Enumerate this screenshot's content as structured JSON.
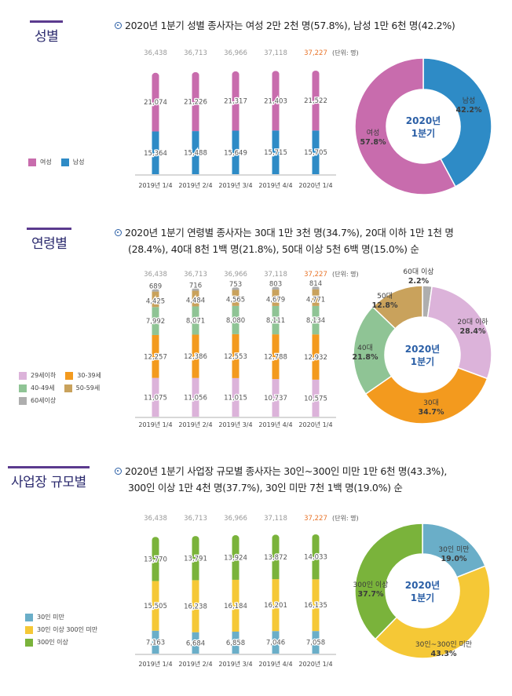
{
  "sections": [
    {
      "title": "성별",
      "headline": [
        "2020년 1분기 성별 종사자는 여성 2만 2천 명(57.8%), 남성 1만 6천 명(42.2%)"
      ],
      "unit": "(단위: 명)",
      "donut_center": [
        "2020년",
        "1분기"
      ]
    },
    {
      "title": "연령별",
      "headline": [
        "2020년 1분기 연령별 종사자는 30대 1만 3천 명(34.7%), 20대 이하 1만 1천 명",
        "(28.4%), 40대 8천 1백 명(21.8%), 50대 이상 5천 6백 명(15.0%) 순"
      ],
      "unit": "(단위: 명)",
      "donut_center": [
        "2020년",
        "1분기"
      ]
    },
    {
      "title": "사업장 규모별",
      "headline": [
        "2020년 1분기 사업장 규모별 종사자는 30인~300인 미만 1만 6천 명(43.3%),",
        "300인 이상 1만 4천 명(37.7%), 30인 미만 7천 1백 명(19.0%) 순"
      ],
      "unit": "(단위: 명)",
      "donut_center": [
        "2020년",
        "1분기"
      ]
    }
  ],
  "chart_data": [
    {
      "type": "bar",
      "stacked": true,
      "categories": [
        "2019년 1/4",
        "2019년 2/4",
        "2019년 3/4",
        "2019년 4/4",
        "2020년 1/4"
      ],
      "totals": [
        "36,438",
        "36,713",
        "36,966",
        "37,118",
        "37,227"
      ],
      "highlight_color": "#e8742a",
      "series": [
        {
          "name": "남성",
          "color": "#2e8bc6",
          "values": [
            15364,
            15488,
            15649,
            15715,
            15705
          ],
          "labels": [
            "15,364",
            "15,488",
            "15,649",
            "15,715",
            "15,705"
          ]
        },
        {
          "name": "여성",
          "color": "#c86cad",
          "values": [
            21074,
            21226,
            21317,
            21403,
            21522
          ],
          "labels": [
            "21,074",
            "21,226",
            "21,317",
            "21,403",
            "21,522"
          ]
        }
      ],
      "legend": [
        "여성",
        "남성"
      ]
    },
    {
      "type": "pie",
      "donut": true,
      "slices": [
        {
          "label": "남성",
          "value": 42.2,
          "pct": "42.2%",
          "color": "#2e8bc6"
        },
        {
          "label": "여성",
          "value": 57.8,
          "pct": "57.8%",
          "color": "#c86cad"
        }
      ]
    },
    {
      "type": "bar",
      "stacked": true,
      "categories": [
        "2019년 1/4",
        "2019년 2/4",
        "2019년 3/4",
        "2019년 4/4",
        "2020년 1/4"
      ],
      "totals": [
        "36,438",
        "36,713",
        "36,966",
        "37,118",
        "37,227"
      ],
      "highlight_color": "#e8742a",
      "series": [
        {
          "name": "29세이하",
          "color": "#dcb3da",
          "values": [
            11075,
            11056,
            11015,
            10737,
            10575
          ],
          "labels": [
            "11,075",
            "11,056",
            "11,015",
            "10,737",
            "10,575"
          ]
        },
        {
          "name": "30-39세",
          "color": "#f39a1e",
          "values": [
            12257,
            12386,
            12553,
            12788,
            12932
          ],
          "labels": [
            "12,257",
            "12,386",
            "12,553",
            "12,788",
            "12,932"
          ]
        },
        {
          "name": "40-49세",
          "color": "#8fc495",
          "values": [
            7992,
            8071,
            8080,
            8111,
            8134
          ],
          "labels": [
            "7,992",
            "8,071",
            "8,080",
            "8,111",
            "8,134"
          ]
        },
        {
          "name": "50-59세",
          "color": "#c9a25c",
          "values": [
            4425,
            4484,
            4565,
            4679,
            4771
          ],
          "labels": [
            "4,425",
            "4,484",
            "4,565",
            "4,679",
            "4,771"
          ]
        },
        {
          "name": "60세이상",
          "color": "#aeaeae",
          "values": [
            689,
            716,
            753,
            803,
            814
          ],
          "labels": [
            "689",
            "716",
            "753",
            "803",
            "814"
          ]
        }
      ],
      "legend": [
        "29세이하",
        "30-39세",
        "40-49세",
        "50-59세",
        "60세이상"
      ]
    },
    {
      "type": "pie",
      "donut": true,
      "slices": [
        {
          "label": "60대 이상",
          "value": 2.2,
          "pct": "2.2%",
          "color": "#aeaeae"
        },
        {
          "label": "20대 이하",
          "value": 28.4,
          "pct": "28.4%",
          "color": "#dcb3da"
        },
        {
          "label": "30대",
          "value": 34.7,
          "pct": "34.7%",
          "color": "#f39a1e"
        },
        {
          "label": "40대",
          "value": 21.8,
          "pct": "21.8%",
          "color": "#8fc495"
        },
        {
          "label": "50대",
          "value": 12.8,
          "pct": "12.8%",
          "color": "#c9a25c"
        }
      ]
    },
    {
      "type": "bar",
      "stacked": true,
      "categories": [
        "2019년 1/4",
        "2019년 2/4",
        "2019년 3/4",
        "2019년 4/4",
        "2020년 1/4"
      ],
      "totals": [
        "36,438",
        "36,713",
        "36,966",
        "37,118",
        "37,227"
      ],
      "highlight_color": "#e8742a",
      "series": [
        {
          "name": "30인 미만",
          "color": "#6aaec8",
          "values": [
            7163,
            6684,
            6858,
            7046,
            7058
          ],
          "labels": [
            "7,163",
            "6,684",
            "6,858",
            "7,046",
            "7,058"
          ]
        },
        {
          "name": "30인 이상 300인 미만",
          "color": "#f5c836",
          "values": [
            15505,
            16238,
            16184,
            16201,
            16135
          ],
          "labels": [
            "15,505",
            "16,238",
            "16,184",
            "16,201",
            "16,135"
          ]
        },
        {
          "name": "300인 이상",
          "color": "#7ab33b",
          "values": [
            13770,
            13791,
            13924,
            13872,
            14033
          ],
          "labels": [
            "13,770",
            "13,791",
            "13,924",
            "13,872",
            "14,033"
          ]
        }
      ],
      "legend": [
        "30인 미만",
        "30인 이상 300인 미만",
        "300인 이상"
      ]
    },
    {
      "type": "pie",
      "donut": true,
      "slices": [
        {
          "label": "30인 미만",
          "value": 19.0,
          "pct": "19.0%",
          "color": "#6aaec8"
        },
        {
          "label": "30인~300인 미만",
          "value": 43.3,
          "pct": "43.3%",
          "color": "#f5c836"
        },
        {
          "label": "300인 이상",
          "value": 37.7,
          "pct": "37.7%",
          "color": "#7ab33b"
        }
      ]
    }
  ]
}
